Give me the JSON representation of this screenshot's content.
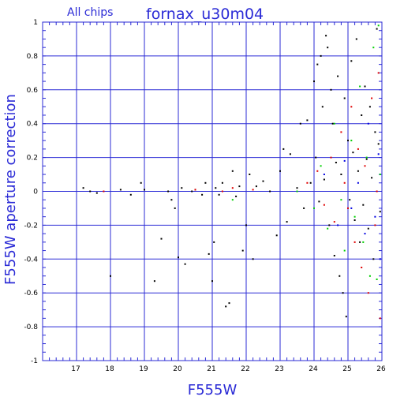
{
  "chart_data": {
    "type": "scatter",
    "title": "fornax_u30m04",
    "subtitle": "All chips",
    "xlabel": "F555W",
    "ylabel": "F555W aperture correction",
    "xlim": [
      16,
      26
    ],
    "ylim": [
      -1,
      1
    ],
    "grid": true,
    "colors": {
      "frame": "#2b2bd6",
      "text": "#2b2bd6",
      "black_points": "#000000",
      "red_points": "#e00000",
      "green_points": "#00d000",
      "blue_points": "#0000e0"
    },
    "x_ticks": [
      "17",
      "18",
      "19",
      "20",
      "21",
      "22",
      "23",
      "24",
      "25",
      "26"
    ],
    "y_ticks": [
      "1",
      "0.8",
      "0.6",
      "0.4",
      "0.2",
      "0",
      "-0.2",
      "-0.4",
      "-0.6",
      "-0.8",
      "-1"
    ],
    "series_colors": [
      "#000000",
      "#e00000",
      "#00d000",
      "#0000e0"
    ],
    "series": [
      {
        "color": "#000000",
        "points": [
          [
            17.2,
            0.02
          ],
          [
            17.4,
            0.0
          ],
          [
            17.6,
            -0.01
          ],
          [
            18.0,
            -0.5
          ],
          [
            18.3,
            0.01
          ],
          [
            18.6,
            -0.02
          ],
          [
            18.9,
            0.05
          ],
          [
            19.0,
            0.01
          ],
          [
            19.3,
            -0.53
          ],
          [
            19.5,
            -0.28
          ],
          [
            19.7,
            0.0
          ],
          [
            19.8,
            -0.05
          ],
          [
            19.9,
            -0.1
          ],
          [
            20.0,
            -0.39
          ],
          [
            20.1,
            0.02
          ],
          [
            20.2,
            -0.43
          ],
          [
            20.4,
            0.0
          ],
          [
            20.5,
            0.01
          ],
          [
            20.7,
            -0.02
          ],
          [
            20.8,
            0.05
          ],
          [
            20.9,
            -0.37
          ],
          [
            21.0,
            -0.53
          ],
          [
            21.05,
            -0.3
          ],
          [
            21.1,
            0.02
          ],
          [
            21.2,
            -0.02
          ],
          [
            21.3,
            0.05
          ],
          [
            21.4,
            -0.68
          ],
          [
            21.5,
            -0.66
          ],
          [
            21.6,
            0.12
          ],
          [
            21.7,
            -0.03
          ],
          [
            21.8,
            0.03
          ],
          [
            21.9,
            -0.35
          ],
          [
            22.0,
            -0.2
          ],
          [
            22.1,
            0.1
          ],
          [
            22.2,
            -0.4
          ],
          [
            22.3,
            0.03
          ],
          [
            22.5,
            0.06
          ],
          [
            22.7,
            0.0
          ],
          [
            22.9,
            -0.26
          ],
          [
            23.0,
            0.12
          ],
          [
            23.1,
            0.25
          ],
          [
            23.2,
            -0.18
          ],
          [
            23.3,
            0.22
          ],
          [
            23.5,
            0.02
          ],
          [
            23.6,
            0.4
          ],
          [
            23.7,
            -0.1
          ],
          [
            23.8,
            0.42
          ],
          [
            23.9,
            0.05
          ],
          [
            24.0,
            0.65
          ],
          [
            24.05,
            0.2
          ],
          [
            24.1,
            0.75
          ],
          [
            24.15,
            -0.06
          ],
          [
            24.2,
            0.8
          ],
          [
            24.25,
            0.5
          ],
          [
            24.3,
            0.07
          ],
          [
            24.35,
            0.92
          ],
          [
            24.4,
            0.85
          ],
          [
            24.45,
            -0.2
          ],
          [
            24.5,
            0.6
          ],
          [
            24.55,
            0.4
          ],
          [
            24.6,
            -0.38
          ],
          [
            24.65,
            0.17
          ],
          [
            24.7,
            0.68
          ],
          [
            24.75,
            -0.5
          ],
          [
            24.8,
            0.1
          ],
          [
            24.85,
            -0.6
          ],
          [
            24.9,
            0.55
          ],
          [
            24.95,
            -0.74
          ],
          [
            25.0,
            0.3
          ],
          [
            25.05,
            -0.05
          ],
          [
            25.1,
            0.77
          ],
          [
            25.15,
            0.23
          ],
          [
            25.2,
            -0.17
          ],
          [
            25.25,
            0.9
          ],
          [
            25.3,
            0.12
          ],
          [
            25.35,
            -0.3
          ],
          [
            25.4,
            0.45
          ],
          [
            25.45,
            -0.08
          ],
          [
            25.5,
            0.62
          ],
          [
            25.55,
            0.19
          ],
          [
            25.6,
            -0.22
          ],
          [
            25.65,
            0.5
          ],
          [
            25.7,
            0.08
          ],
          [
            25.75,
            -0.4
          ],
          [
            25.8,
            0.35
          ],
          [
            25.85,
            0.96
          ],
          [
            25.9,
            0.28
          ],
          [
            25.95,
            -0.12
          ]
        ]
      },
      {
        "color": "#e00000",
        "points": [
          [
            17.8,
            0.0
          ],
          [
            20.5,
            0.01
          ],
          [
            21.3,
            0.0
          ],
          [
            21.6,
            0.02
          ],
          [
            22.2,
            0.01
          ],
          [
            23.8,
            0.05
          ],
          [
            24.1,
            0.12
          ],
          [
            24.3,
            -0.08
          ],
          [
            24.5,
            0.2
          ],
          [
            24.6,
            -0.18
          ],
          [
            24.8,
            0.35
          ],
          [
            24.9,
            0.05
          ],
          [
            25.0,
            -0.1
          ],
          [
            25.1,
            0.5
          ],
          [
            25.2,
            -0.3
          ],
          [
            25.3,
            0.25
          ],
          [
            25.4,
            -0.45
          ],
          [
            25.5,
            0.15
          ],
          [
            25.6,
            -0.6
          ],
          [
            25.7,
            0.55
          ],
          [
            25.8,
            -0.2
          ],
          [
            25.9,
            0.7
          ],
          [
            25.95,
            -0.75
          ],
          [
            25.85,
            0.0
          ]
        ]
      },
      {
        "color": "#00d000",
        "points": [
          [
            21.6,
            -0.05
          ],
          [
            23.5,
            0.0
          ],
          [
            24.0,
            -0.1
          ],
          [
            24.2,
            0.15
          ],
          [
            24.4,
            -0.22
          ],
          [
            24.6,
            0.4
          ],
          [
            24.8,
            -0.05
          ],
          [
            24.9,
            -0.35
          ],
          [
            25.1,
            0.3
          ],
          [
            25.2,
            -0.15
          ],
          [
            25.35,
            0.62
          ],
          [
            25.45,
            -0.3
          ],
          [
            25.55,
            0.2
          ],
          [
            25.65,
            -0.5
          ],
          [
            25.75,
            0.85
          ],
          [
            25.85,
            -0.52
          ],
          [
            25.9,
            0.98
          ],
          [
            25.95,
            0.1
          ]
        ]
      },
      {
        "color": "#0000e0",
        "points": [
          [
            24.3,
            0.1
          ],
          [
            24.7,
            -0.2
          ],
          [
            24.9,
            0.18
          ],
          [
            25.1,
            -0.1
          ],
          [
            25.3,
            0.05
          ],
          [
            25.5,
            -0.25
          ],
          [
            25.6,
            0.4
          ],
          [
            25.8,
            -0.15
          ],
          [
            25.9,
            0.22
          ],
          [
            25.95,
            -0.4
          ]
        ]
      }
    ]
  }
}
